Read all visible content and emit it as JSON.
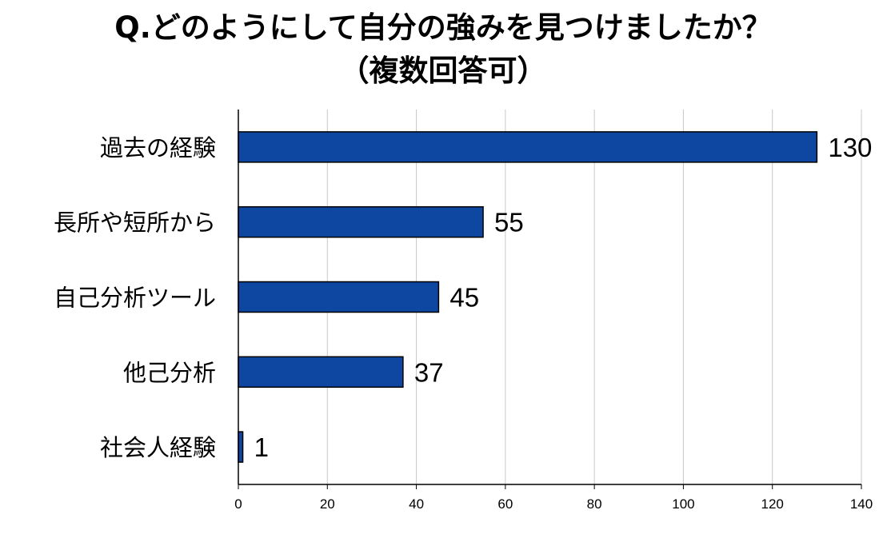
{
  "chart_data": {
    "type": "bar",
    "orientation": "horizontal",
    "title": "Q.どのようにして自分の強みを見つけましたか？",
    "subtitle": "（複数回答可）",
    "xlabel": "",
    "ylabel": "",
    "categories": [
      "過去の経験",
      "長所や短所から",
      "自己分析ツール",
      "他己分析",
      "社会人経験"
    ],
    "values": [
      130,
      55,
      45,
      37,
      1
    ],
    "value_labels": [
      "130",
      "55",
      "45",
      "37",
      "1"
    ],
    "xlim": [
      0,
      140
    ],
    "xticks": [
      0,
      20,
      40,
      60,
      80,
      100,
      120,
      140
    ],
    "xtick_labels": [
      "0",
      "20",
      "40",
      "60",
      "80",
      "100",
      "120",
      "140"
    ],
    "grid": "vertical",
    "legend": "none",
    "colors": {
      "bar_fill": "#0d47a1",
      "bar_stroke": "#000000",
      "grid": "#c8c8c8",
      "axis": "#000000",
      "text": "#000000"
    }
  }
}
